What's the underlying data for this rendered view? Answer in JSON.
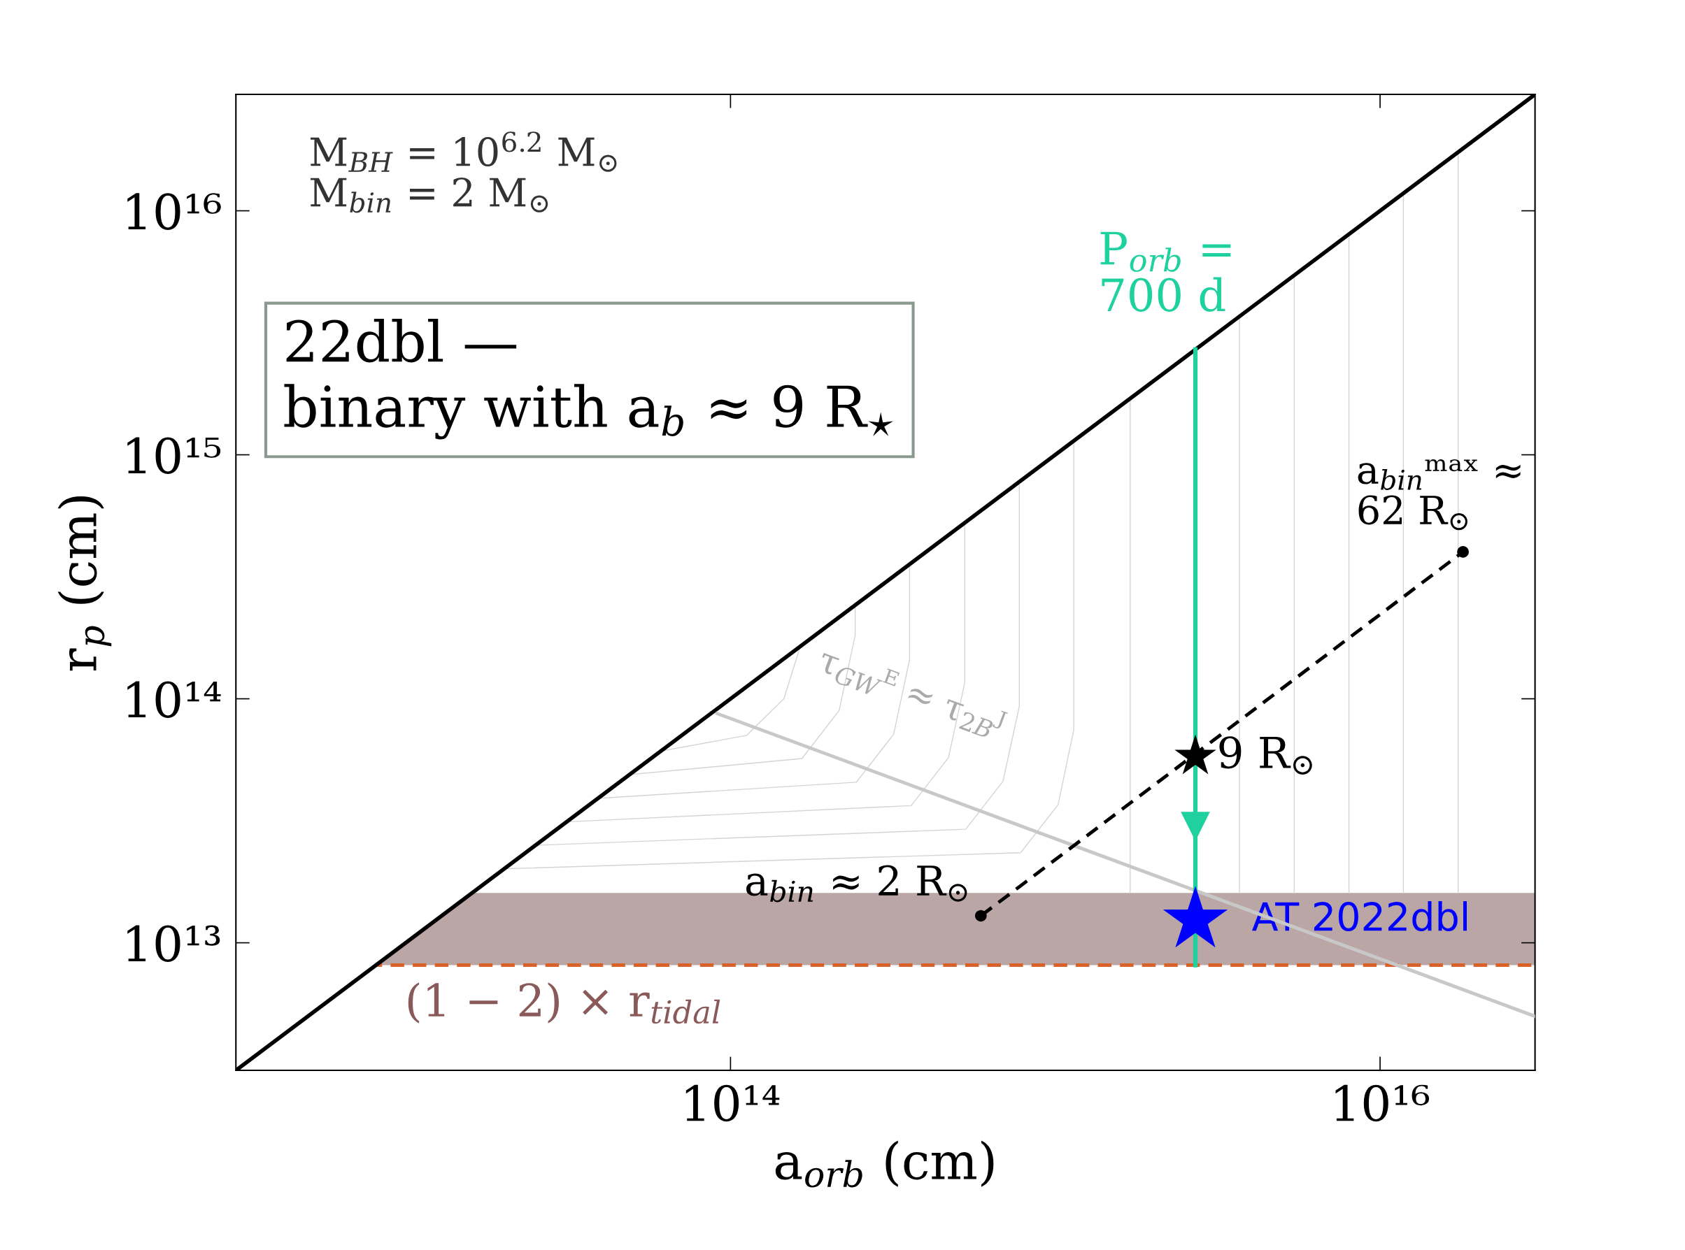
{
  "chart_data": {
    "type": "line",
    "xlabel": "a$_{orb}$ (cm)",
    "ylabel": "r$_{p}$ (cm)",
    "log": "xy",
    "xlim": [
      3000000000000.0,
      3e+16
    ],
    "ylim": [
      3000000000000.0,
      3e+16
    ],
    "xticks": [
      {
        "value": 100000000000000.0,
        "label": "10¹⁴"
      },
      {
        "value": 1e+16,
        "label": "10¹⁶"
      }
    ],
    "yticks": [
      {
        "value": 10000000000000.0,
        "label": "10¹³"
      },
      {
        "value": 100000000000000.0,
        "label": "10¹⁴"
      },
      {
        "value": 1000000000000000.0,
        "label": "10¹⁵"
      },
      {
        "value": 1e+16,
        "label": "10¹⁶"
      }
    ],
    "series": [
      {
        "color": "#d4d4d4",
        "x": [
          61000000000000.0,
          112000000000000.0,
          146000000000000.0,
          164000000000000.0
        ],
        "values": [
          61000000000000.0,
          70800000000000.0,
          100000000000000.0,
          164000000000000.0
        ]
      },
      {
        "color": "#d4d4d4",
        "x": [
          48900000000000.0,
          166000000000000.0,
          216000000000000.0,
          242000000000000.0,
          242000000000000.0
        ],
        "values": [
          48900000000000.0,
          56900000000000.0,
          89500000000000.0,
          182000000000000.0,
          242000000000000.0
        ]
      },
      {
        "color": "#d4d4d4",
        "x": [
          39100000000000.0,
          244000000000000.0,
          318000000000000.0,
          356000000000000.0,
          356000000000000.0
        ],
        "values": [
          39100000000000.0,
          45500000000000.0,
          71600000000000.0,
          145000000000000.0,
          356000000000000.0
        ]
      },
      {
        "color": "#d4d4d4",
        "x": [
          31300000000000.0,
          360000000000000.0,
          469000000000000.0,
          526000000000000.0,
          526000000000000.0
        ],
        "values": [
          31300000000000.0,
          36500000000000.0,
          57400000000000.0,
          116000000000000.0,
          526000000000000.0
        ]
      },
      {
        "color": "#d4d4d4",
        "x": [
          25100000000000.0,
          530000000000000.0,
          690000000000000.0,
          775000000000000.0,
          775000000000000.0
        ],
        "values": [
          25100000000000.0,
          29200000000000.0,
          45900000000000.0,
          93100000000000.0,
          775000000000000.0
        ]
      },
      {
        "color": "#d4d4d4",
        "x": [
          20100000000000.0,
          782000000000000.0,
          1020000000000000.0,
          1140000000000000.0,
          1140000000000000.0
        ],
        "values": [
          20100000000000.0,
          23400000000000.0,
          36800000000000.0,
          74600000000000.0,
          1140000000000000.0
        ]
      },
      {
        "color": "#d4d4d4",
        "x": [
          1700000000000000.0,
          1700000000000000.0
        ],
        "values": [
          16000000000000.0,
          1700000000000000.0
        ]
      },
      {
        "color": "#d4d4d4",
        "x": [
          3690000000000000.0,
          3690000000000000.0
        ],
        "values": [
          16000000000000.0,
          3690000000000000.0
        ]
      },
      {
        "color": "#d4d4d4",
        "x": [
          5440000000000000.0,
          5440000000000000.0
        ],
        "values": [
          16000000000000.0,
          5440000000000000.0
        ]
      },
      {
        "color": "#d4d4d4",
        "x": [
          8020000000000000.0,
          8020000000000000.0
        ],
        "values": [
          16000000000000.0,
          8020000000000000.0
        ]
      },
      {
        "color": "#d4d4d4",
        "x": [
          1.18e+16,
          1.18e+16
        ],
        "values": [
          16000000000000.0,
          1.18e+16
        ]
      },
      {
        "color": "#d4d4d4",
        "x": [
          1.74e+16,
          1.74e+16
        ],
        "values": [
          16000000000000.0,
          1.74e+16
        ]
      },
      {
        "color": "#000000",
        "x": [
          3000000000000.0,
          3e+16
        ],
        "values": [
          3000000000000.0,
          3e+16
        ]
      },
      {
        "color": "#c8c8c8",
        "x": [
          91000000000000.0,
          3e+16
        ],
        "values": [
          87000000000000.0,
          5000000000000.0
        ]
      },
      {
        "color": "#1fd19f",
        "x": [
          2700000000000000.0,
          2700000000000000.0
        ],
        "values": [
          2700000000000000.0,
          8100000000000.0
        ]
      },
      {
        "type": "scatter",
        "color": "#1fd19f",
        "marker": "triangle",
        "x": [
          2700000000000000.0
        ],
        "values": [
          30000000000000.0
        ]
      },
      {
        "color": "#000000",
        "line_style": "dashed",
        "marker": "circle",
        "x": [
          590000000000000.0,
          1.8e+16
        ],
        "values": [
          12900000000000.0,
          400000000000000.0
        ]
      },
      {
        "type": "scatter",
        "color": "#000000",
        "marker": "star",
        "x": [
          2700000000000000.0
        ],
        "values": [
          58000000000000.0
        ]
      },
      {
        "type": "scatter",
        "color": "#0000ff",
        "marker": "star",
        "x": [
          2700000000000000.0
        ],
        "values": [
          12400000000000.0
        ]
      }
    ],
    "bands": [
      {
        "axis": "y",
        "from": 8100000000000.0,
        "to": 16000000000000.0,
        "color": "#bba6a6",
        "label": "(1 − 2) × r$_{tidal}$"
      }
    ],
    "ref_lines": [
      {
        "axis": "y",
        "value": 8100000000000.0,
        "color": "#d9622b",
        "line_style": "dashed"
      }
    ],
    "annotations": [
      "M$_{BH}$ = 10$^{6.2}$ M$_{⊙}$\nM$_{bin}$ = 2 M$_{⊙}$",
      "22dbl —\nbinary with a$_{b}$ ≈ 9 R$_{⋆}$",
      {
        "text": "P$_{orb}$ =\n700 d",
        "x": 2700000000000000.0,
        "y": 2700000000000000.0
      },
      {
        "text": "a$_{bin}$ᵐᵃˣ ≈\n62 R$_{⊙}$",
        "x": 1.8e+16,
        "y": 400000000000000.0
      },
      {
        "text": "9 R$_{⊙}$",
        "x": 2700000000000000.0,
        "y": 58000000000000.0
      },
      {
        "text": "a$_{bin}$ ≈ 2 R$_{⊙}$",
        "x": 590000000000000.0,
        "y": 12900000000000.0
      },
      {
        "text": "AT 2022dbl",
        "x": 2700000000000000.0,
        "y": 12400000000000.0
      },
      "τ$_{GW}$ᴱ ≈ τ$_{2B}$ᴶ"
    ]
  }
}
